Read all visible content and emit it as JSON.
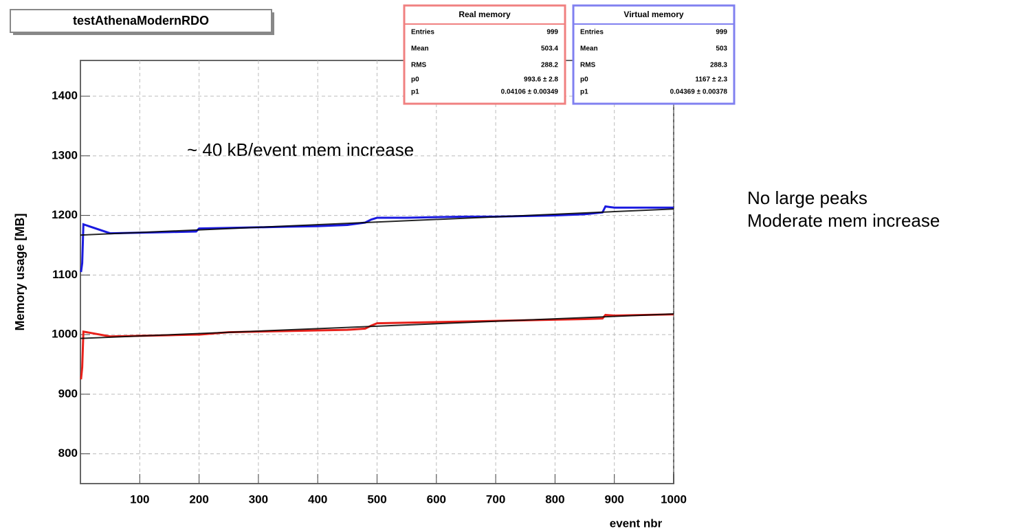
{
  "chart_data": {
    "type": "line",
    "title": "testAthenaModernRDO",
    "x_label": "event nbr",
    "y_label": "Memory usage [MB]",
    "annotation": "~ 40 kB/event mem increase",
    "side_notes": [
      "No large peaks",
      "Moderate mem increase"
    ],
    "xlim": [
      0,
      1000
    ],
    "xticks": [
      100,
      200,
      300,
      400,
      500,
      600,
      700,
      800,
      900,
      1000
    ],
    "ylim": [
      750,
      1460
    ],
    "yticks": [
      800,
      900,
      1000,
      1100,
      1200,
      1300,
      1400
    ],
    "grid": true,
    "x": [
      1,
      3,
      5,
      50,
      100,
      150,
      195,
      200,
      250,
      300,
      350,
      400,
      450,
      480,
      490,
      500,
      550,
      600,
      650,
      700,
      750,
      800,
      850,
      880,
      885,
      900,
      950,
      1000
    ],
    "series": [
      {
        "name": "Real memory",
        "color": "#e8201a",
        "box_color": "#f08080",
        "values": [
          925,
          945,
          1005,
          997,
          998,
          999,
          1000,
          1000,
          1004,
          1005,
          1006,
          1007,
          1008,
          1010,
          1015,
          1019,
          1020,
          1021,
          1022,
          1023,
          1024,
          1025,
          1026,
          1027,
          1033,
          1032,
          1033,
          1034
        ],
        "fit": [
          993.6,
          0.04106
        ],
        "stats": [
          [
            "Entries",
            "999"
          ],
          [
            "Mean",
            "503.4"
          ],
          [
            "RMS",
            "288.2"
          ],
          [
            "p0",
            "993.6 ± 2.8"
          ],
          [
            "p1",
            "0.04106 ± 0.00349"
          ]
        ]
      },
      {
        "name": "Virtual memory",
        "color": "#1a1ae0",
        "box_color": "#8080f0",
        "values": [
          1105,
          1120,
          1185,
          1170,
          1171,
          1172,
          1173,
          1178,
          1179,
          1180,
          1181,
          1182,
          1184,
          1188,
          1193,
          1196,
          1196,
          1197,
          1198,
          1198,
          1199,
          1200,
          1202,
          1205,
          1215,
          1213,
          1213,
          1213
        ],
        "fit": [
          1167,
          0.04369
        ],
        "stats": [
          [
            "Entries",
            "999"
          ],
          [
            "Mean",
            "503"
          ],
          [
            "RMS",
            "288.3"
          ],
          [
            "p0",
            "1167 ± 2.3"
          ],
          [
            "p1",
            "0.04369 ± 0.00378"
          ]
        ]
      }
    ]
  }
}
